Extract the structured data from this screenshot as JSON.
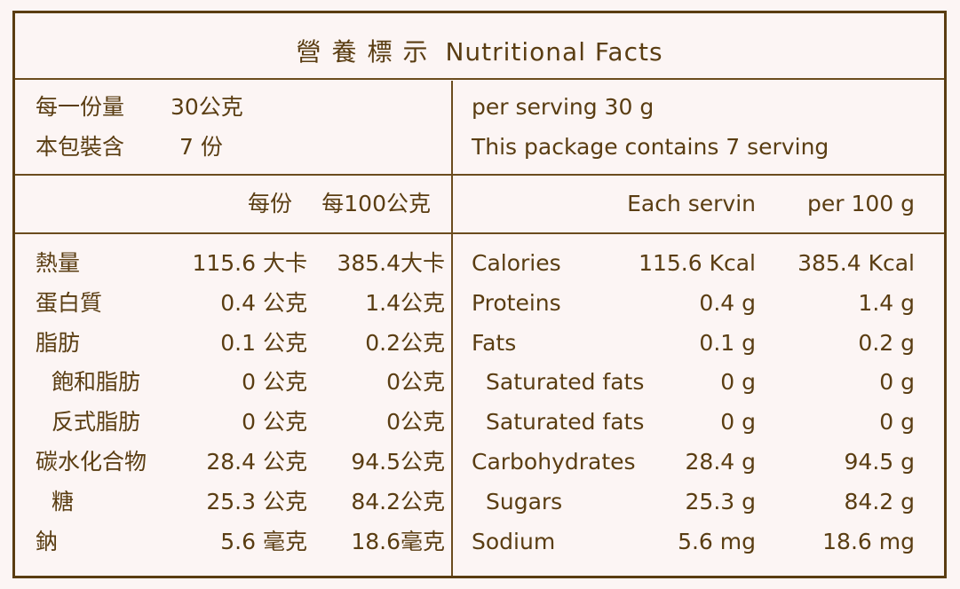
{
  "title": {
    "zh": "營養標示",
    "en": "Nutritional Facts"
  },
  "serving": {
    "zh_size_label": "每一份量",
    "zh_size_value": "30公克",
    "zh_pkg_label": "本包裝含",
    "zh_pkg_value": "7 份",
    "en_size": "per serving 30 g",
    "en_pkg": "This package contains  7  serving"
  },
  "headers": {
    "zh_per": "每份",
    "zh_100": "每100公克",
    "en_per": "Each servin",
    "en_100": "per 100 g"
  },
  "rows": [
    {
      "zh": "熱量",
      "zh_per": "115.6 大卡",
      "zh_100": "385.4大卡",
      "en": "Calories",
      "en_per": "115.6 Kcal",
      "en_100": "385.4 Kcal"
    },
    {
      "zh": "蛋白質",
      "zh_per": "0.4 公克",
      "zh_100": "1.4公克",
      "en": "Proteins",
      "en_per": "0.4 g",
      "en_100": "1.4 g"
    },
    {
      "zh": "脂肪",
      "zh_per": "0.1 公克",
      "zh_100": "0.2公克",
      "en": "Fats",
      "en_per": "0.1 g",
      "en_100": "0.2 g"
    },
    {
      "zh": "飽和脂肪",
      "zh_per": "0 公克",
      "zh_100": "0公克",
      "en": "Saturated fats",
      "en_per": "0 g",
      "en_100": "0 g",
      "indent": true
    },
    {
      "zh": "反式脂肪",
      "zh_per": "0 公克",
      "zh_100": "0公克",
      "en": "Saturated fats",
      "en_per": "0 g",
      "en_100": "0 g",
      "indent": true
    },
    {
      "zh": "碳水化合物",
      "zh_per": "28.4 公克",
      "zh_100": "94.5公克",
      "en": "Carbohydrates",
      "en_per": "28.4 g",
      "en_100": "94.5 g"
    },
    {
      "zh": "糖",
      "zh_per": "25.3 公克",
      "zh_100": "84.2公克",
      "en": "Sugars",
      "en_per": "25.3 g",
      "en_100": "84.2 g",
      "indent": true
    },
    {
      "zh": "鈉",
      "zh_per": "5.6 毫克",
      "zh_100": "18.6毫克",
      "en": "Sodium",
      "en_per": "5.6 mg",
      "en_100": "18.6 mg"
    }
  ],
  "colors": {
    "text": "#5a3d12",
    "background": "#fcf5f4"
  }
}
